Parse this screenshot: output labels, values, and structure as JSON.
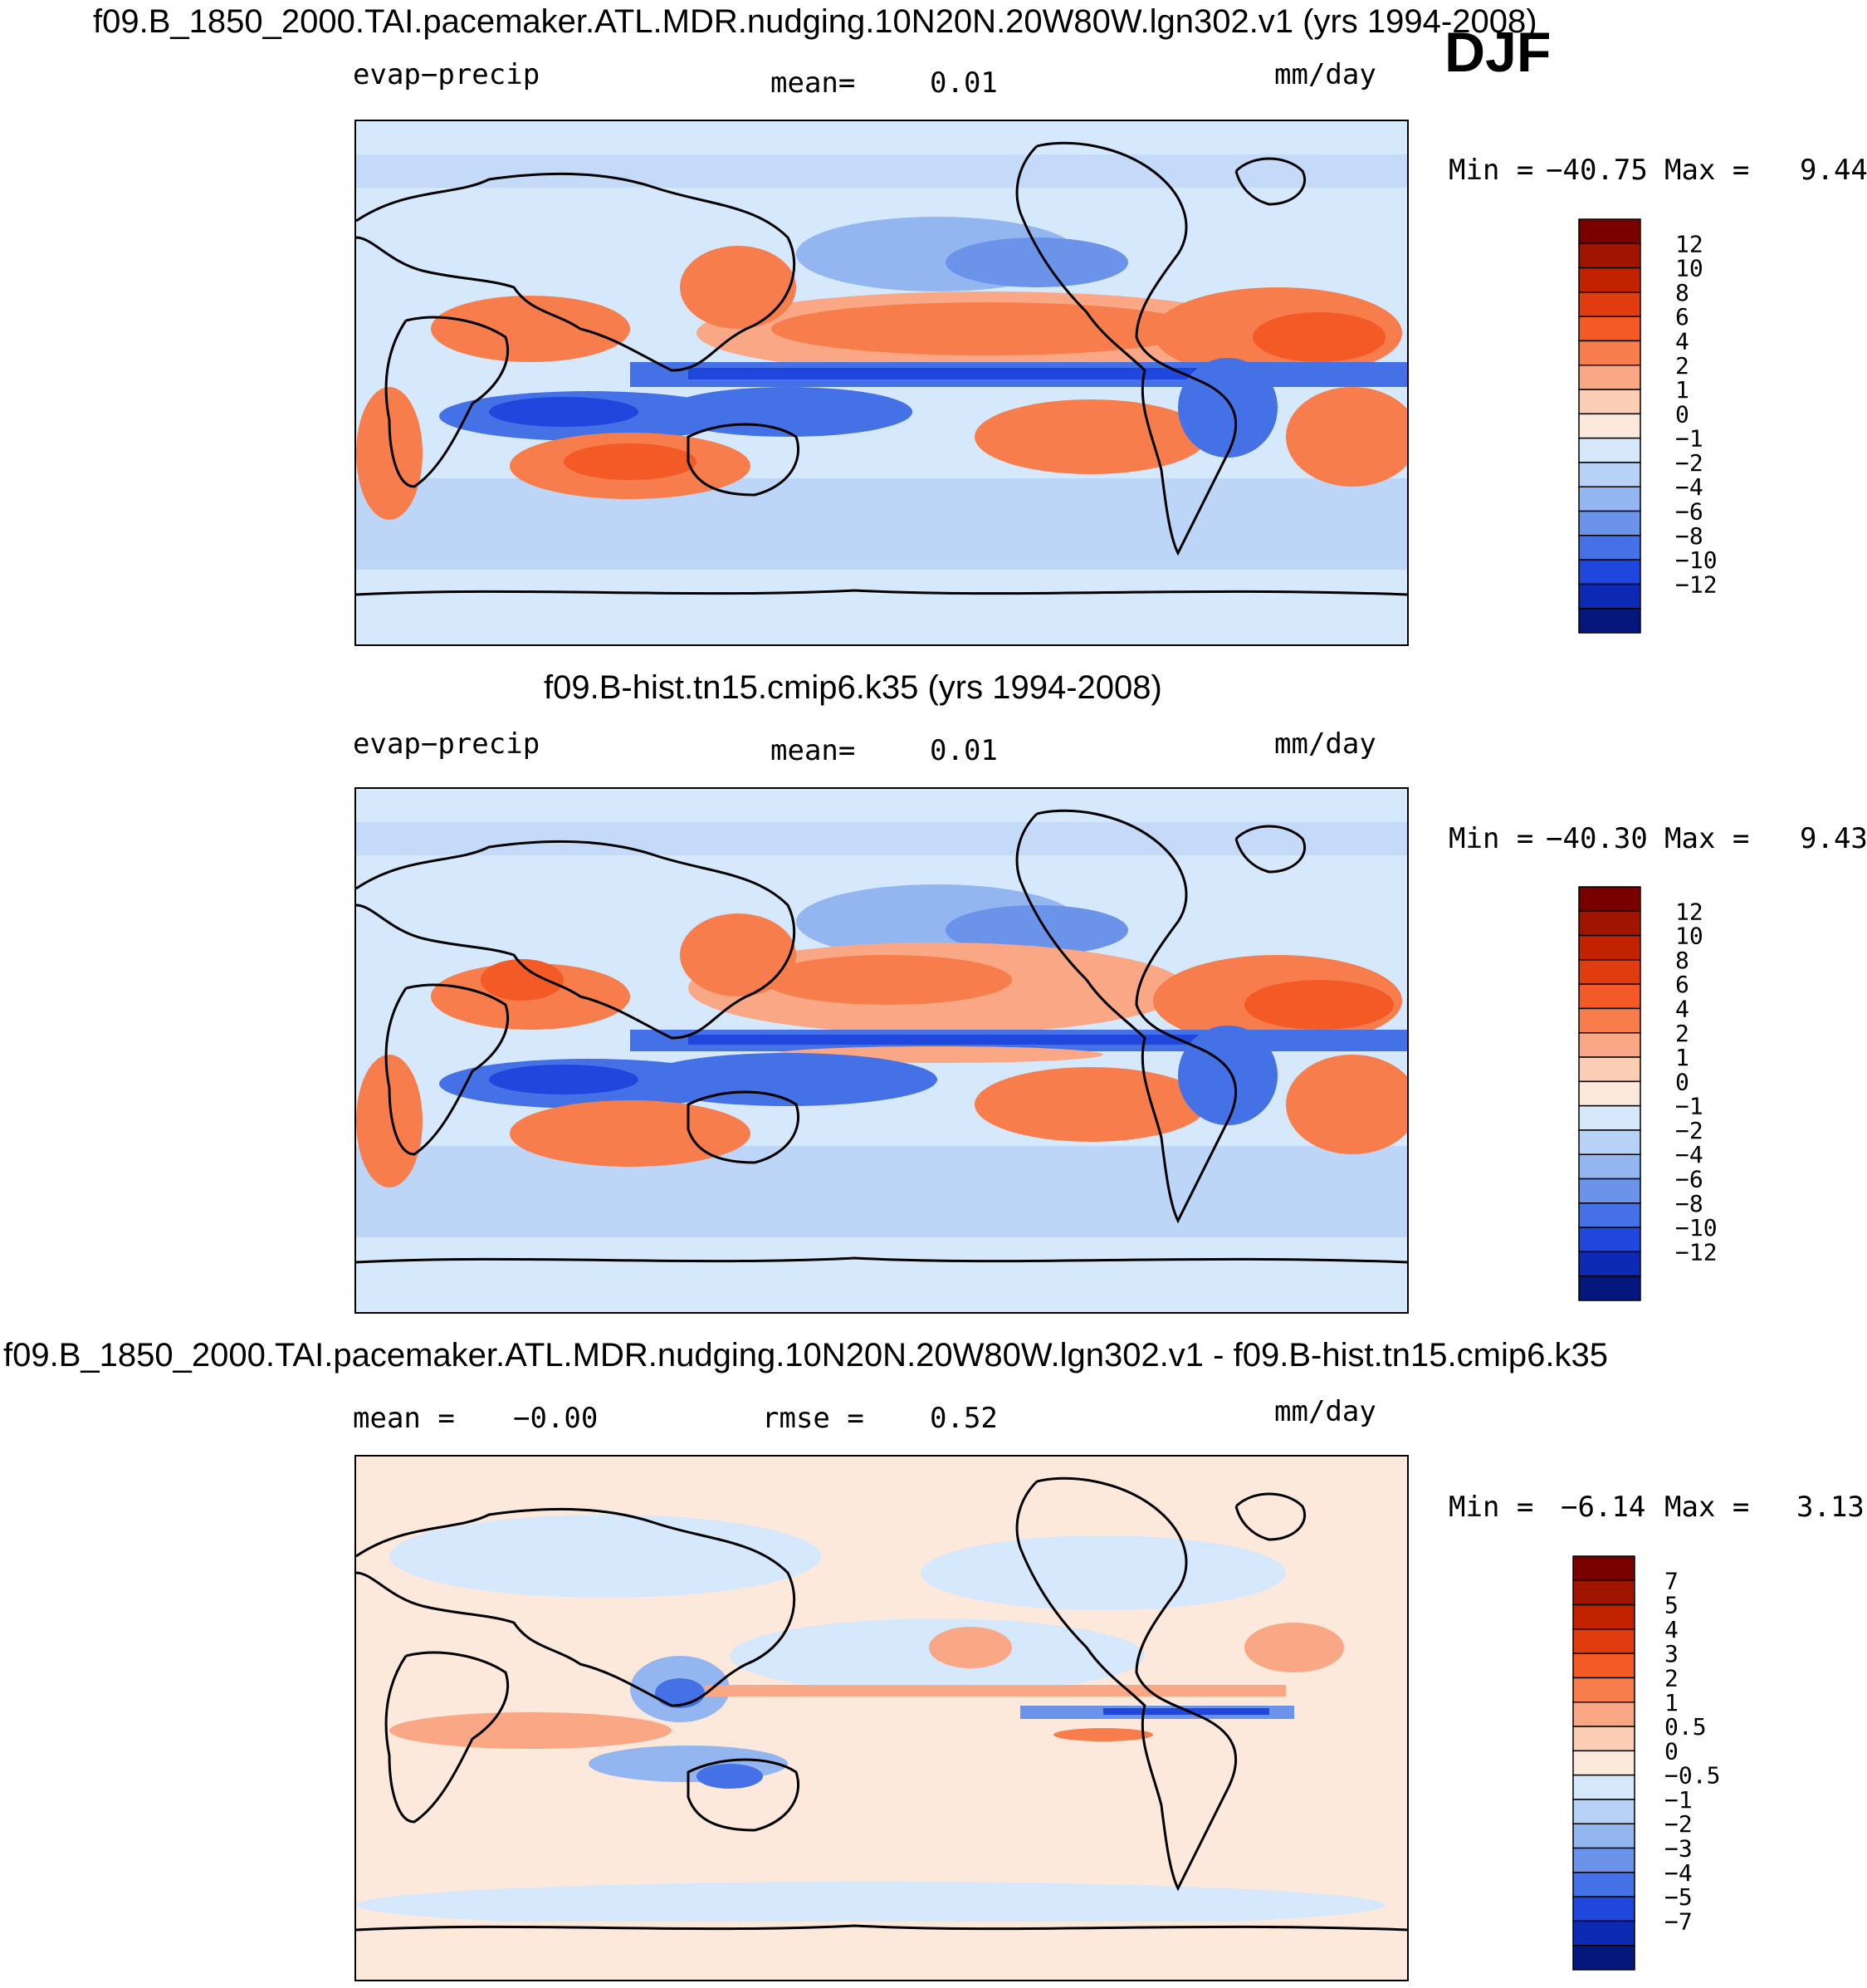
{
  "season": "DJF",
  "panels": [
    {
      "title": "f09.B_1850_2000.TAI.pacemaker.ATL.MDR.nudging.10N20N.20W80W.lgn302.v1 (yrs 1994-2008)",
      "left_label": "evap−precip",
      "center_label": "mean=",
      "center_value": "0.01",
      "units": "mm/day",
      "min_label": "Min =",
      "min_value": "−40.75",
      "max_label": "Max =",
      "max_value": "9.44",
      "colorbar": [
        "12",
        "10",
        "8",
        "6",
        "4",
        "2",
        "1",
        "0",
        "−1",
        "−2",
        "−4",
        "−6",
        "−8",
        "−10",
        "−12"
      ]
    },
    {
      "title": "f09.B-hist.tn15.cmip6.k35 (yrs 1994-2008)",
      "left_label": "evap−precip",
      "center_label": "mean=",
      "center_value": "0.01",
      "units": "mm/day",
      "min_label": "Min =",
      "min_value": "−40.30",
      "max_label": "Max =",
      "max_value": "9.43",
      "colorbar": [
        "12",
        "10",
        "8",
        "6",
        "4",
        "2",
        "1",
        "0",
        "−1",
        "−2",
        "−4",
        "−6",
        "−8",
        "−10",
        "−12"
      ]
    },
    {
      "title": "f09.B_1850_2000.TAI.pacemaker.ATL.MDR.nudging.10N20N.20W80W.lgn302.v1 - f09.B-hist.tn15.cmip6.k35",
      "left_label": "mean =",
      "left_value": "−0.00",
      "center_label": "rmse =",
      "center_value": "0.52",
      "units": "mm/day",
      "min_label": "Min =",
      "min_value": "−6.14",
      "max_label": "Max =",
      "max_value": "3.13",
      "colorbar": [
        "7",
        "5",
        "4",
        "3",
        "2",
        "1",
        "0.5",
        "0",
        "−0.5",
        "−1",
        "−2",
        "−3",
        "−4",
        "−5",
        "−7"
      ]
    }
  ],
  "colors": {
    "cbar16": [
      "#7a0000",
      "#a01500",
      "#c32200",
      "#e13b10",
      "#f35a25",
      "#f77e4c",
      "#f9a785",
      "#fbcdb4",
      "#fde9dc",
      "#d6e8fb",
      "#b7d1f7",
      "#93b6f1",
      "#6b93ea",
      "#4571e6",
      "#1f47dd",
      "#0d2ab5",
      "#05167d"
    ]
  }
}
